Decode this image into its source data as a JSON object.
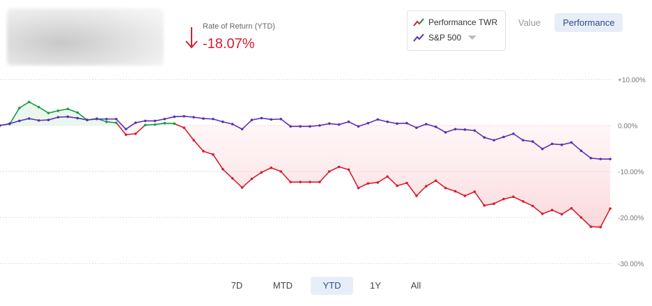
{
  "header": {
    "ror_label": "Rate of Return (YTD)",
    "ror_value": "-18.07%",
    "ror_direction": "down",
    "ror_color": "#d81b2f"
  },
  "legend": {
    "items": [
      {
        "label": "Performance TWR",
        "icon": "trend-up-red-green-icon"
      },
      {
        "label": "S&P 500",
        "icon": "trend-up-purple-icon"
      }
    ]
  },
  "view_toggle": {
    "value_label": "Value",
    "performance_label": "Performance",
    "selected": "Performance"
  },
  "time_ranges": {
    "items": [
      "7D",
      "MTD",
      "YTD",
      "1Y",
      "All"
    ],
    "selected": "YTD"
  },
  "colors": {
    "twr_negative": "#d81b2f",
    "twr_positive": "#1a9a44",
    "sp500": "#5b2fb0",
    "grid": "#d9d9d9",
    "fill_negative": "#fde6e8",
    "fill_positive": "#e6f4ea"
  },
  "chart_data": {
    "type": "line",
    "yaxis_position": "right",
    "ylim": [
      -30,
      10
    ],
    "yticks": [
      10,
      0,
      -10,
      -20,
      -30
    ],
    "ytick_labels": [
      "+10.00%",
      "0.00%",
      "-10.00%",
      "-20.00%",
      "-30.00%"
    ],
    "grid": true,
    "series": [
      {
        "name": "Performance TWR",
        "values": [
          0,
          0.3,
          3.8,
          5.1,
          4.0,
          2.7,
          3.2,
          3.6,
          2.8,
          1.2,
          1.5,
          0.8,
          0.6,
          -2.0,
          -1.8,
          0.1,
          0.2,
          0.5,
          0.4,
          -0.5,
          -3.2,
          -5.6,
          -6.3,
          -9.5,
          -11.5,
          -13.5,
          -11.6,
          -10.2,
          -9.2,
          -10.0,
          -12.3,
          -12.3,
          -12.3,
          -12.3,
          -10.0,
          -9.0,
          -9.6,
          -13.6,
          -12.6,
          -12.4,
          -11.1,
          -13.1,
          -12.5,
          -15.3,
          -13.2,
          -12.0,
          -13.6,
          -14.3,
          -15.3,
          -14.4,
          -17.4,
          -17.0,
          -16.0,
          -15.5,
          -16.5,
          -17.5,
          -19.2,
          -18.4,
          -19.3,
          -18.0,
          -20.0,
          -22.0,
          -22.1,
          -18.07
        ]
      },
      {
        "name": "S&P 500",
        "values": [
          0,
          0.4,
          1.0,
          1.5,
          1.1,
          1.2,
          1.8,
          1.9,
          1.6,
          1.2,
          1.4,
          1.4,
          1.4,
          -0.8,
          0.6,
          1.0,
          1.0,
          1.4,
          1.9,
          2.0,
          1.8,
          1.5,
          1.4,
          0.8,
          0.3,
          -0.8,
          1.2,
          1.6,
          1.3,
          1.4,
          -0.2,
          -0.2,
          -0.2,
          0.0,
          0.4,
          0.2,
          0.8,
          -0.2,
          0.5,
          1.3,
          0.8,
          0.4,
          0.5,
          -0.5,
          0.3,
          -0.3,
          -1.5,
          -0.8,
          -0.9,
          -1.1,
          -2.6,
          -3.2,
          -2.5,
          -1.8,
          -3.2,
          -3.5,
          -5.1,
          -4.0,
          -4.2,
          -3.7,
          -5.5,
          -7.1,
          -7.3,
          -7.3
        ]
      }
    ]
  }
}
